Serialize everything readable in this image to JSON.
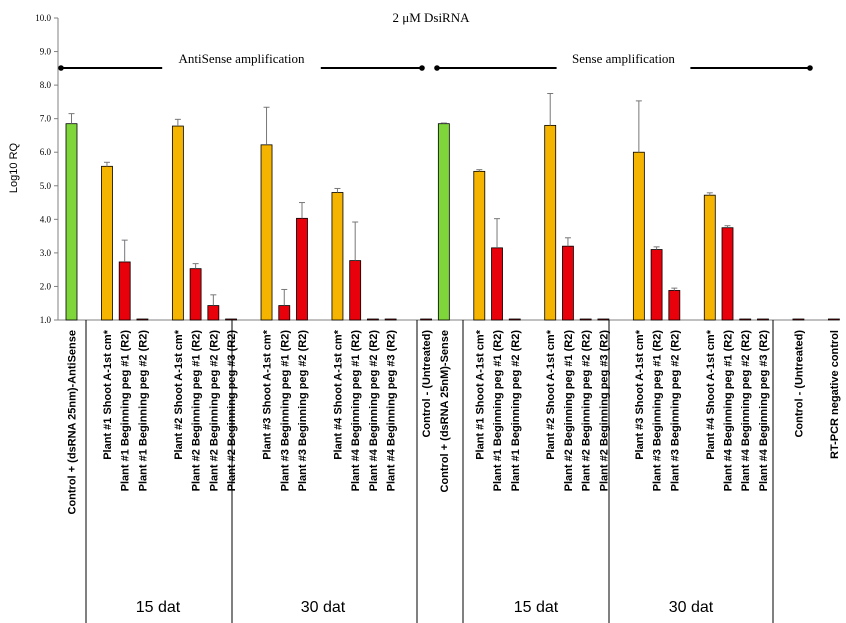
{
  "chart_data": {
    "type": "bar",
    "title": "2 μM DsiRNA",
    "ylabel": "Log10 RQ",
    "ylim": [
      1.0,
      10.0
    ],
    "yticks": [
      "1.0",
      "2.0",
      "3.0",
      "4.0",
      "5.0",
      "6.0",
      "7.0",
      "8.0",
      "9.0",
      "10.0"
    ],
    "brackets": [
      "AntiSense amplification",
      "Sense amplification"
    ],
    "group_labels": [
      "15 dat",
      "30 dat",
      "15 dat",
      "30 dat"
    ],
    "colors": {
      "control": "#7FD63A",
      "shoot": "#F5B400",
      "peg": "#E8000B"
    },
    "categories": [
      "Control + (dsRNA 25nm)-AntiSense",
      "Plant #1 Shoot A-1st cm*",
      "Plant #1 Beginning peg #1 (R2)",
      "Plant #1 Beginning peg #2 (R2)",
      "Plant #2 Shoot A-1st cm*",
      "Plant #2 Beginning peg #1 (R2)",
      "Plant #2 Beginning peg #2 (R2)",
      "Plant #2 Beginning peg #3 (R2)",
      "Plant #3 Shoot A-1st cm*",
      "Plant #3 Beginning peg #1 (R2)",
      "Plant #3 Beginning peg #2 (R2)",
      "Plant #4 Shoot A-1st cm*",
      "Plant #4 Beginning peg #1 (R2)",
      "Plant #4 Beginning peg #2 (R2)",
      "Plant #4 Beginning peg #3 (R2)",
      "Control - (Untreated)",
      "Control + (dsRNA 25nM)-Sense",
      "Plant #1 Shoot A-1st cm*",
      "Plant #1 Beginning peg #1 (R2)",
      "Plant #1 Beginning peg #2 (R2)",
      "Plant #2 Shoot A-1st cm*",
      "Plant #2 Beginning peg #1 (R2)",
      "Plant #2 Beginning peg #2 (R2)",
      "Plant #2 Beginning peg #3 (R2)",
      "Plant #3 Shoot A-1st cm*",
      "Plant #3 Beginning peg #1 (R2)",
      "Plant #3 Beginning peg #2 (R2)",
      "Plant #4 Shoot A-1st cm*",
      "Plant #4 Beginning peg #1 (R2)",
      "Plant #4 Beginning peg #2 (R2)",
      "Plant #4 Beginning peg #3 (R2)",
      "Control - (Untreated)",
      "RT-PCR negative control"
    ],
    "values": [
      6.85,
      5.58,
      2.73,
      1.0,
      6.78,
      2.53,
      1.43,
      1.0,
      6.22,
      1.43,
      4.03,
      4.8,
      2.77,
      1.0,
      1.0,
      1.0,
      6.85,
      5.43,
      3.15,
      1.0,
      6.8,
      3.2,
      1.0,
      1.0,
      6.0,
      3.1,
      1.88,
      4.72,
      3.75,
      1.0,
      1.0,
      1.0,
      1.0
    ],
    "errors": [
      0.3,
      0.12,
      0.65,
      0,
      0.2,
      0.15,
      0.32,
      0,
      1.12,
      0.48,
      0.47,
      0.12,
      1.15,
      0,
      0,
      0,
      0.02,
      0.05,
      0.87,
      0,
      0.95,
      0.25,
      0,
      0,
      1.53,
      0.08,
      0.07,
      0.07,
      0.06,
      0,
      0,
      0,
      0
    ],
    "bar_kinds": [
      "control",
      "shoot",
      "peg",
      "peg",
      "shoot",
      "peg",
      "peg",
      "peg",
      "shoot",
      "peg",
      "peg",
      "shoot",
      "peg",
      "peg",
      "peg",
      "peg",
      "control",
      "shoot",
      "peg",
      "peg",
      "shoot",
      "peg",
      "peg",
      "peg",
      "shoot",
      "peg",
      "peg",
      "shoot",
      "peg",
      "peg",
      "peg",
      "peg",
      "peg"
    ],
    "grid": false,
    "legend": "none"
  }
}
